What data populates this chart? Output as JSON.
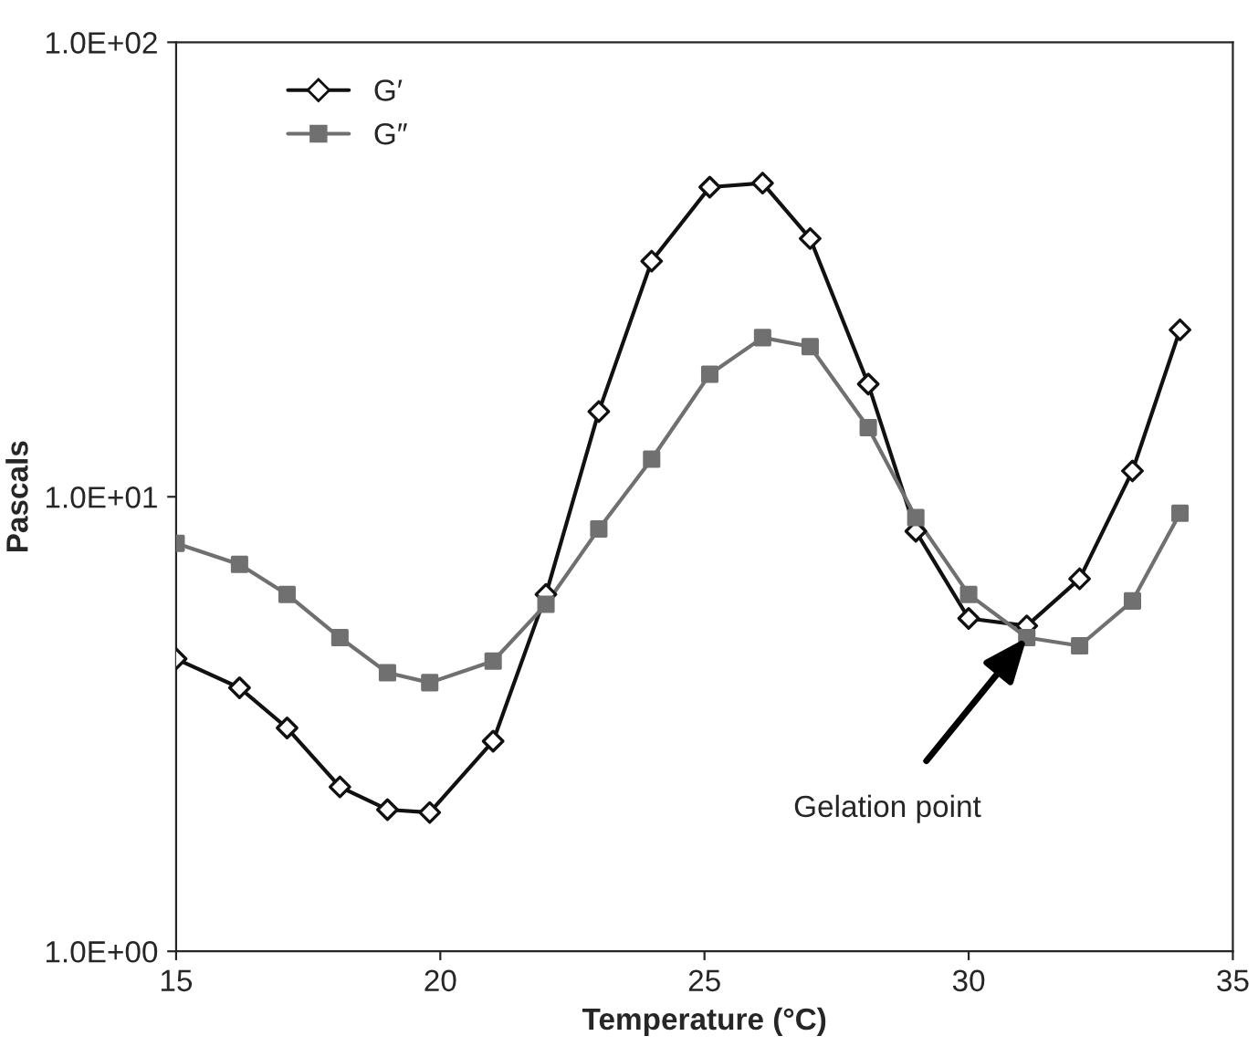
{
  "chart_data": {
    "type": "line",
    "xlabel": "Temperature (°C)",
    "ylabel": "Pascals",
    "log": "y",
    "xlim": [
      15,
      35
    ],
    "xticks": [
      15,
      20,
      25,
      30,
      35
    ],
    "ylim": [
      1,
      100
    ],
    "yticks": [
      {
        "value": 1,
        "label": "1.0E+00"
      },
      {
        "value": 10,
        "label": "1.0E+01"
      },
      {
        "value": 100,
        "label": "1.0E+02"
      }
    ],
    "grid": false,
    "legend": "top left",
    "series": [
      {
        "name": "G′",
        "color": "#111111",
        "marker": "diamond",
        "x": [
          15,
          16.2,
          17.1,
          18.1,
          19.0,
          19.8,
          21.0,
          22.0,
          23.0,
          24.0,
          25.1,
          26.1,
          27.0,
          28.1,
          29.0,
          30.0,
          31.1,
          32.1,
          33.1,
          34.0
        ],
        "values": [
          4.4,
          3.8,
          3.1,
          2.3,
          2.05,
          2.02,
          2.9,
          6.1,
          15.4,
          33,
          48,
          49,
          37,
          17.7,
          8.4,
          5.4,
          5.2,
          6.6,
          11.4,
          23.3
        ]
      },
      {
        "name": "G″",
        "color": "#707070",
        "marker": "square",
        "x": [
          15,
          16.2,
          17.1,
          18.1,
          19.0,
          19.8,
          21.0,
          22.0,
          23.0,
          24.0,
          25.1,
          26.1,
          27.0,
          28.1,
          29.0,
          30.0,
          31.1,
          32.1,
          33.1,
          34.0
        ],
        "values": [
          7.9,
          7.1,
          6.1,
          4.9,
          4.1,
          3.9,
          4.35,
          5.8,
          8.5,
          12.1,
          18.6,
          22.4,
          21.4,
          14.2,
          9.0,
          6.1,
          4.9,
          4.7,
          5.9,
          9.2
        ]
      }
    ],
    "annotations": [
      {
        "text": "Gelation point",
        "x": 31.1,
        "y": 4.9
      }
    ]
  }
}
